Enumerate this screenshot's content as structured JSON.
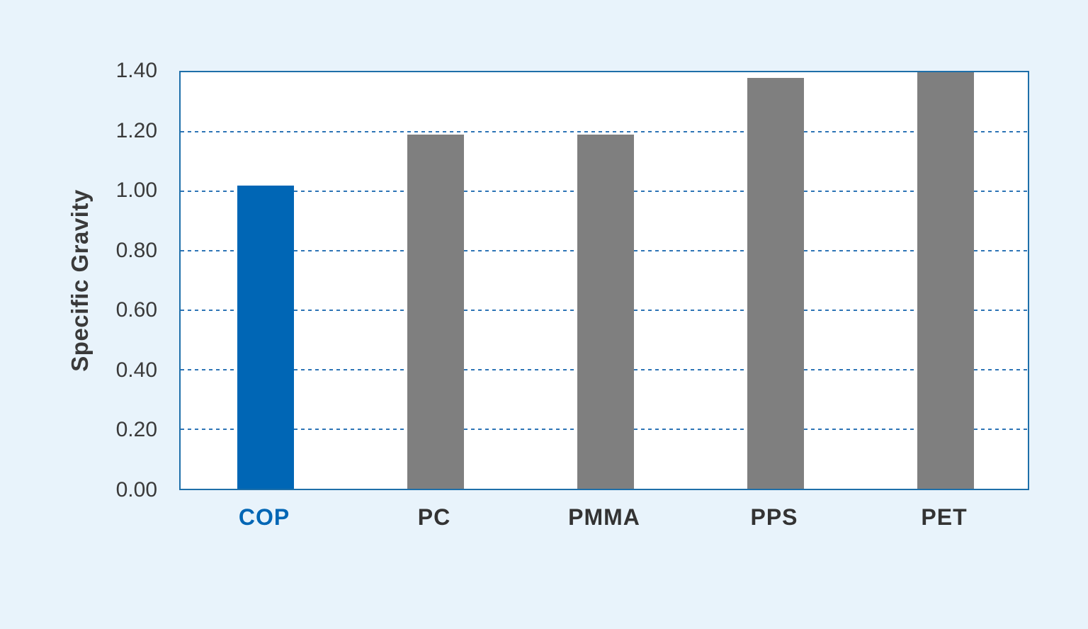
{
  "chart_data": {
    "type": "bar",
    "categories": [
      "COP",
      "PC",
      "PMMA",
      "PPS",
      "PET"
    ],
    "values": [
      1.02,
      1.19,
      1.19,
      1.38,
      1.4
    ],
    "title": "",
    "xlabel": "",
    "ylabel": "Specific Gravity",
    "ylim": [
      0,
      1.4
    ],
    "ytick_step": 0.2,
    "ytick_labels": [
      "0.00",
      "0.20",
      "0.40",
      "0.60",
      "0.80",
      "1.00",
      "1.20",
      "1.40"
    ],
    "grid": "horizontal-dotted",
    "legend_position": "none",
    "highlight_category": "COP"
  },
  "colors": {
    "background": "#e8f3fb",
    "plot_background": "#ffffff",
    "axis_border": "#1e6fa9",
    "gridline": "#2e75b6",
    "highlight_bar": "#0066b5",
    "default_bar": "#7f7f7f",
    "tick_label": "#3a3a3a",
    "category_label": "#333333",
    "highlight_label": "#0066b5"
  }
}
